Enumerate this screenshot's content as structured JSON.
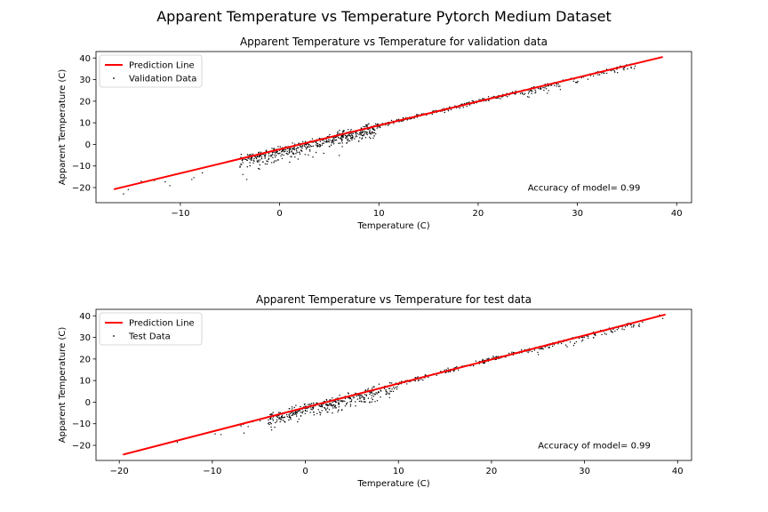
{
  "figure": {
    "suptitle": "Apparent Temperature vs Temperature Pytorch Medium Dataset"
  },
  "colors": {
    "prediction_line": "#ff0000",
    "points": "#000000",
    "axes": "#000000",
    "background": "#ffffff"
  },
  "chart_data": [
    {
      "type": "scatter",
      "title": "Apparent Temperature vs Temperature for validation data",
      "xlabel": "Temperature (C)",
      "ylabel": "Apparent Temperature (C)",
      "xlim": [
        -18.5,
        41.5
      ],
      "ylim": [
        -27,
        43
      ],
      "xticks": [
        -10,
        0,
        10,
        20,
        30,
        40
      ],
      "yticks": [
        -20,
        -10,
        0,
        10,
        20,
        30,
        40
      ],
      "legend": {
        "placement": "upper-left",
        "entries": [
          "Prediction Line",
          "Validation Data"
        ]
      },
      "annotation": "Accuracy of model= 0.99",
      "grid": false,
      "series": [
        {
          "name": "Prediction Line",
          "kind": "line",
          "x": [
            -16.7,
            38.6
          ],
          "y": [
            -20.8,
            40.5
          ]
        },
        {
          "name": "Validation Data",
          "kind": "scatter",
          "points": 900,
          "x_range": [
            -16.7,
            38.6
          ],
          "model": {
            "slope": 1.109,
            "intercept": -2.28
          },
          "spread_note_x": [
            -16.5,
            38.5
          ]
        }
      ]
    },
    {
      "type": "scatter",
      "title": "Apparent Temperature vs Temperature for test data",
      "xlabel": "Temperature (C)",
      "ylabel": "Apparent Temperature (C)",
      "xlim": [
        -22.5,
        41.5
      ],
      "ylim": [
        -27,
        43
      ],
      "xticks": [
        -20,
        -10,
        0,
        10,
        20,
        30,
        40
      ],
      "yticks": [
        -20,
        -10,
        0,
        10,
        20,
        30,
        40
      ],
      "legend": {
        "placement": "upper-left",
        "entries": [
          "Prediction Line",
          "Test Data"
        ]
      },
      "annotation": "Accuracy of model= 0.99",
      "grid": false,
      "series": [
        {
          "name": "Prediction Line",
          "kind": "line",
          "x": [
            -19.6,
            38.7
          ],
          "y": [
            -24.3,
            40.6
          ]
        },
        {
          "name": "Test Data",
          "kind": "scatter",
          "points": 700,
          "x_range": [
            -19.6,
            38.7
          ],
          "model": {
            "slope": 1.113,
            "intercept": -2.48
          }
        }
      ]
    }
  ]
}
